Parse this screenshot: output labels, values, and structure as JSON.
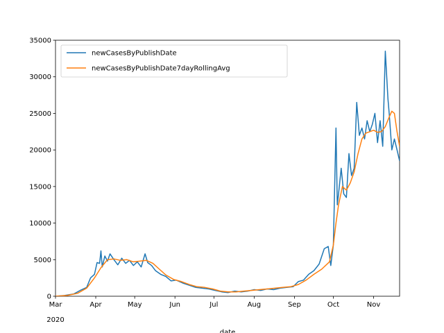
{
  "chart_data": {
    "type": "line",
    "title": "",
    "xlabel": "date",
    "ylabel": "",
    "ylim": [
      0,
      35000
    ],
    "xlim": [
      "2020-03-01",
      "2020-11-21"
    ],
    "yticks": [
      0,
      5000,
      10000,
      15000,
      20000,
      25000,
      30000,
      35000
    ],
    "yticklabels": [
      "0",
      "5000",
      "10000",
      "15000",
      "20000",
      "25000",
      "30000",
      "35000"
    ],
    "xticks": [
      "2020-03-01",
      "2020-04-01",
      "2020-05-01",
      "2020-06-01",
      "2020-07-01",
      "2020-08-01",
      "2020-09-01",
      "2020-10-01",
      "2020-11-01"
    ],
    "xticklabels": [
      "Mar",
      "Apr",
      "May",
      "Jun",
      "Jul",
      "Aug",
      "Sep",
      "Oct",
      "Nov"
    ],
    "xtick_year_label": "2020",
    "grid": false,
    "legend_position": "top-left",
    "series": [
      {
        "name": "newCasesByPublishDate",
        "color": "#1f77b4",
        "x": [
          "2020-03-01",
          "2020-03-08",
          "2020-03-15",
          "2020-03-20",
          "2020-03-25",
          "2020-03-28",
          "2020-03-31",
          "2020-04-02",
          "2020-04-04",
          "2020-04-05",
          "2020-04-06",
          "2020-04-08",
          "2020-04-10",
          "2020-04-12",
          "2020-04-15",
          "2020-04-18",
          "2020-04-21",
          "2020-04-24",
          "2020-04-27",
          "2020-04-30",
          "2020-05-03",
          "2020-05-06",
          "2020-05-09",
          "2020-05-11",
          "2020-05-14",
          "2020-05-17",
          "2020-05-21",
          "2020-05-25",
          "2020-05-29",
          "2020-06-02",
          "2020-06-07",
          "2020-06-12",
          "2020-06-17",
          "2020-06-22",
          "2020-06-27",
          "2020-07-02",
          "2020-07-07",
          "2020-07-12",
          "2020-07-17",
          "2020-07-22",
          "2020-07-27",
          "2020-08-01",
          "2020-08-06",
          "2020-08-11",
          "2020-08-16",
          "2020-08-21",
          "2020-08-26",
          "2020-08-31",
          "2020-09-04",
          "2020-09-08",
          "2020-09-12",
          "2020-09-16",
          "2020-09-20",
          "2020-09-24",
          "2020-09-27",
          "2020-09-29",
          "2020-10-01",
          "2020-10-03",
          "2020-10-04",
          "2020-10-05",
          "2020-10-07",
          "2020-10-09",
          "2020-10-11",
          "2020-10-13",
          "2020-10-15",
          "2020-10-17",
          "2020-10-19",
          "2020-10-21",
          "2020-10-23",
          "2020-10-25",
          "2020-10-27",
          "2020-10-29",
          "2020-10-31",
          "2020-11-02",
          "2020-11-04",
          "2020-11-06",
          "2020-11-08",
          "2020-11-10",
          "2020-11-12",
          "2020-11-13",
          "2020-11-15",
          "2020-11-17",
          "2020-11-19",
          "2020-11-21"
        ],
        "values": [
          0,
          100,
          300,
          800,
          1200,
          2500,
          3000,
          4600,
          4500,
          6200,
          4000,
          5500,
          4800,
          5800,
          5000,
          4300,
          5200,
          4500,
          4900,
          4200,
          4700,
          4000,
          5800,
          4600,
          4200,
          3500,
          3000,
          2700,
          2100,
          2200,
          1800,
          1500,
          1200,
          1100,
          1000,
          800,
          600,
          500,
          700,
          600,
          700,
          900,
          800,
          1000,
          900,
          1100,
          1200,
          1300,
          2000,
          2200,
          3000,
          3500,
          4400,
          6500,
          6800,
          4200,
          7000,
          23000,
          12500,
          14000,
          17500,
          14000,
          13500,
          19500,
          16500,
          17500,
          26500,
          22000,
          23000,
          21500,
          24000,
          22500,
          23500,
          25000,
          21000,
          24000,
          20500,
          33500,
          27000,
          25000,
          20000,
          21500,
          20000,
          18500
        ]
      },
      {
        "name": "newCasesByPublishDate7dayRollingAvg",
        "color": "#ff7f0e",
        "x": [
          "2020-03-01",
          "2020-03-10",
          "2020-03-18",
          "2020-03-25",
          "2020-03-31",
          "2020-04-05",
          "2020-04-10",
          "2020-04-15",
          "2020-04-20",
          "2020-04-25",
          "2020-04-30",
          "2020-05-05",
          "2020-05-10",
          "2020-05-15",
          "2020-05-20",
          "2020-05-25",
          "2020-05-31",
          "2020-06-06",
          "2020-06-12",
          "2020-06-18",
          "2020-06-24",
          "2020-06-30",
          "2020-07-06",
          "2020-07-12",
          "2020-07-18",
          "2020-07-24",
          "2020-07-30",
          "2020-08-05",
          "2020-08-11",
          "2020-08-17",
          "2020-08-23",
          "2020-08-29",
          "2020-09-04",
          "2020-09-10",
          "2020-09-16",
          "2020-09-22",
          "2020-09-28",
          "2020-10-01",
          "2020-10-03",
          "2020-10-05",
          "2020-10-08",
          "2020-10-11",
          "2020-10-14",
          "2020-10-17",
          "2020-10-20",
          "2020-10-23",
          "2020-10-26",
          "2020-10-29",
          "2020-11-01",
          "2020-11-04",
          "2020-11-07",
          "2020-11-10",
          "2020-11-13",
          "2020-11-15",
          "2020-11-17",
          "2020-11-19",
          "2020-11-21"
        ],
        "values": [
          0,
          100,
          400,
          1100,
          2500,
          3900,
          5000,
          5100,
          4900,
          5000,
          4700,
          4800,
          4900,
          4500,
          3700,
          2900,
          2300,
          2000,
          1600,
          1300,
          1200,
          1000,
          700,
          600,
          600,
          700,
          800,
          900,
          1000,
          1100,
          1200,
          1300,
          1600,
          2200,
          3000,
          3700,
          4700,
          7000,
          10000,
          12500,
          15000,
          14500,
          15500,
          17000,
          19500,
          21500,
          22300,
          22500,
          22700,
          22400,
          22500,
          23200,
          24500,
          25300,
          25000,
          22500,
          20500
        ]
      }
    ]
  }
}
